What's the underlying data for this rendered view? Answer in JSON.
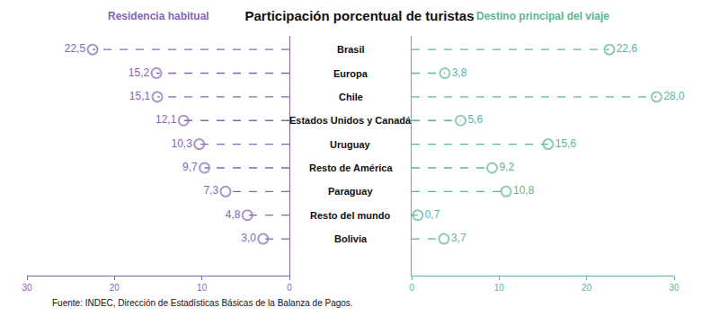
{
  "title": "Participación porcentual de turistas",
  "annotations": [
    "Fuente: INDEC, Dirección de Estadísticas Básicas de la Balanza de Pagos."
  ],
  "chart_data": [
    {
      "type": "bar",
      "orientation": "horizontal",
      "title": "Residencia habitual",
      "categories": [
        "Brasil",
        "Europa",
        "Chile",
        "Estados Unidos y Canadá",
        "Uruguay",
        "Resto de América",
        "Paraguay",
        "Resto del mundo",
        "Bolivia"
      ],
      "values": [
        22.5,
        15.2,
        15.1,
        12.1,
        10.3,
        9.7,
        7.3,
        4.8,
        3.0
      ],
      "value_labels": [
        "22,5",
        "15,2",
        "15,1",
        "12,1",
        "10,3",
        "9,7",
        "7,3",
        "4,8",
        "3,0"
      ],
      "color": "#8466b5",
      "line_style": "dashed",
      "marker": "circle-open",
      "xlim": [
        30,
        0
      ],
      "xticks": [
        30,
        20,
        10,
        0
      ],
      "data_labels": true,
      "grid": false
    },
    {
      "type": "bar",
      "orientation": "horizontal",
      "title": "Destino principal del viaje",
      "categories": [
        "Brasil",
        "Europa",
        "Chile",
        "Estados Unidos y Canadá",
        "Uruguay",
        "Resto de América",
        "Paraguay",
        "Resto del mundo",
        "Bolivia"
      ],
      "values": [
        22.6,
        3.8,
        28.0,
        5.6,
        15.6,
        9.2,
        10.8,
        0.7,
        3.7
      ],
      "value_labels": [
        "22,6",
        "3,8",
        "28,0",
        "5,6",
        "15,6",
        "9,2",
        "10,8",
        "0,7",
        "3,7"
      ],
      "color": "#5db596",
      "line_style": "dashed",
      "marker": "circle-open",
      "xlim": [
        0,
        30
      ],
      "xticks": [
        0,
        10,
        20,
        30
      ],
      "data_labels": true,
      "grid": false
    }
  ]
}
